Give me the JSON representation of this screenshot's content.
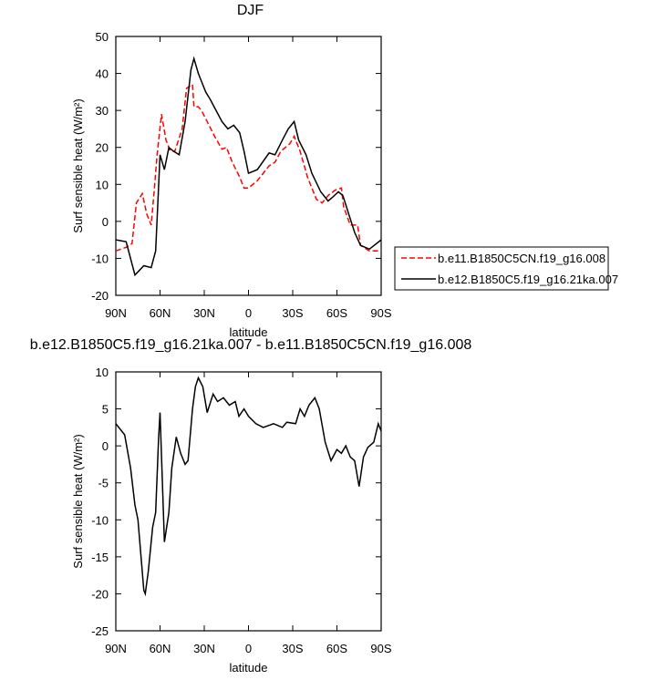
{
  "chart_data": [
    {
      "type": "line",
      "title": "DJF",
      "xlabel": "latitude",
      "ylabel": "Surf sensible heat (W/m²)",
      "xlim": [
        90,
        -90
      ],
      "ylim": [
        -20,
        50
      ],
      "xticks": [
        {
          "value": 90,
          "label": "90N"
        },
        {
          "value": 60,
          "label": "60N"
        },
        {
          "value": 30,
          "label": "30N"
        },
        0,
        {
          "value": -30,
          "label": "30S"
        },
        {
          "value": -60,
          "label": "60S"
        },
        {
          "value": -90,
          "label": "90S"
        }
      ],
      "yticks": [
        -20,
        -10,
        0,
        10,
        20,
        30,
        40,
        50
      ],
      "legend": "right",
      "series": [
        {
          "name": "b.e11.B1850C5CN.f19_g16.008",
          "color": "#ff0000",
          "dash": true,
          "x": [
            90,
            83,
            79,
            76,
            72,
            69,
            66,
            64,
            62,
            59,
            56,
            53,
            50,
            45,
            42,
            38,
            37,
            34,
            32,
            28,
            23,
            18,
            15,
            11,
            6,
            3,
            0,
            -6,
            -14,
            -18,
            -22,
            -28,
            -31,
            -35,
            -40,
            -46,
            -50,
            -54,
            -59,
            -63,
            -64.5,
            -69,
            -74,
            -76,
            -82,
            -90
          ],
          "values": [
            -8,
            -7,
            -6,
            5,
            7.5,
            2,
            -1,
            8,
            18,
            29,
            22,
            19,
            19,
            25,
            36,
            37,
            31,
            31,
            30,
            27,
            23,
            19.5,
            20,
            16,
            12,
            9,
            9,
            11,
            15,
            16,
            19,
            21,
            23,
            19,
            12,
            6,
            5,
            7,
            8.5,
            9,
            4,
            -1,
            -1,
            -6.5,
            -8,
            -8
          ]
        },
        {
          "name": "b.e12.B1850C5.f19_g16.21ka.007",
          "color": "#000000",
          "dash": false,
          "x": [
            90,
            83,
            77,
            71,
            66,
            63,
            60,
            57,
            54,
            51,
            47,
            43,
            39,
            37,
            34,
            29,
            26,
            22,
            18,
            14,
            10,
            6,
            3,
            0,
            -6,
            -14,
            -18,
            -23,
            -27,
            -31,
            -34,
            -39,
            -43,
            -49,
            -54,
            -57,
            -61,
            -64,
            -68,
            -72,
            -76,
            -82,
            -90
          ],
          "values": [
            -5,
            -5.5,
            -14.5,
            -12,
            -12.5,
            -8,
            18,
            14,
            20,
            19,
            18,
            27,
            41,
            44,
            40,
            35,
            33,
            30,
            27,
            25,
            26,
            24,
            19,
            13,
            14,
            18.5,
            18,
            22,
            25,
            27,
            22,
            18,
            13,
            8,
            5.5,
            6.5,
            8,
            7,
            2,
            -3,
            -6.5,
            -7.5,
            -5
          ]
        }
      ]
    },
    {
      "type": "line",
      "title": "b.e12.B1850C5.f19_g16.21ka.007 - b.e11.B1850C5CN.f19_g16.008",
      "xlabel": "latitude",
      "ylabel": "Surf sensible heat (W/m²)",
      "xlim": [
        90,
        -90
      ],
      "ylim": [
        -25,
        10
      ],
      "xticks": [
        {
          "value": 90,
          "label": "90N"
        },
        {
          "value": 60,
          "label": "60N"
        },
        {
          "value": 30,
          "label": "30N"
        },
        0,
        {
          "value": -30,
          "label": "30S"
        },
        {
          "value": -60,
          "label": "60S"
        },
        {
          "value": -90,
          "label": "90S"
        }
      ],
      "yticks": [
        -25,
        -20,
        -15,
        -10,
        -5,
        0,
        5,
        10
      ],
      "series": [
        {
          "color": "#000000",
          "dash": false,
          "x": [
            90,
            84,
            80,
            77,
            75,
            71,
            70,
            68,
            65,
            63,
            61,
            60,
            57,
            54,
            52,
            49,
            46,
            43,
            41,
            38,
            36,
            34,
            31,
            28,
            24,
            21,
            17,
            13,
            9,
            6.5,
            3,
            0,
            -5,
            -10,
            -17,
            -23,
            -26,
            -32,
            -35,
            -38,
            -41,
            -45,
            -48,
            -52,
            -56,
            -60,
            -63,
            -66,
            -69,
            -72,
            -75,
            -78,
            -81,
            -85,
            -88,
            -90
          ],
          "values": [
            3,
            1.5,
            -3,
            -8,
            -10,
            -19.5,
            -20,
            -17,
            -11,
            -9,
            1,
            4.5,
            -13,
            -9,
            -3,
            1.2,
            -1,
            -2.5,
            -2,
            5,
            8,
            9.2,
            8,
            4.5,
            7,
            6,
            6.5,
            5.5,
            6,
            4,
            5,
            4,
            3,
            2.5,
            3,
            2.5,
            3.2,
            3,
            5,
            4,
            5.5,
            6.5,
            5,
            0.5,
            -2,
            -0.5,
            -1,
            0,
            -1.5,
            -2,
            -5.5,
            -1.5,
            -0.2,
            0.5,
            3,
            2
          ]
        }
      ]
    }
  ]
}
